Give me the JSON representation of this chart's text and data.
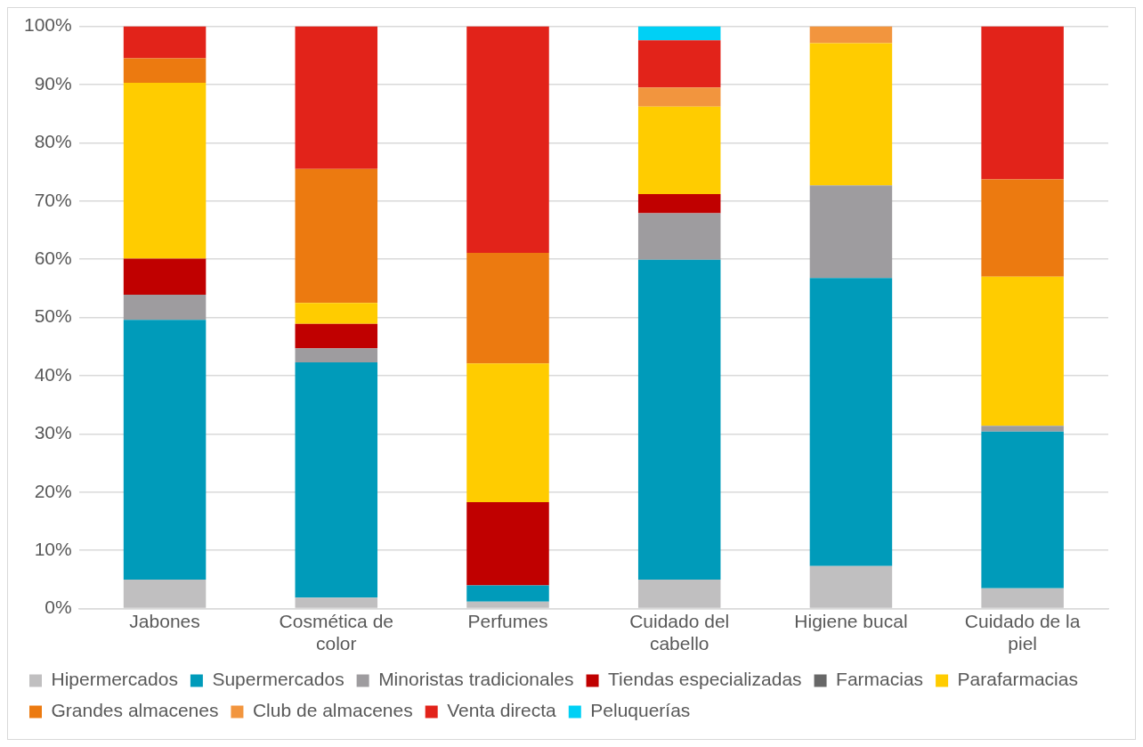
{
  "chart_data": {
    "type": "bar",
    "stacked": true,
    "categories": [
      "Jabones",
      "Cosmética de color",
      "Perfumes",
      "Cuidado del cabello",
      "Higiene bucal",
      "Cuidado de la piel"
    ],
    "series": [
      {
        "name": "Hipermercados",
        "color": "#c0bfc0",
        "values": [
          5.0,
          1.9,
          1.2,
          5.0,
          7.3,
          3.5
        ]
      },
      {
        "name": "Supermercados",
        "color": "#009bba",
        "values": [
          44.6,
          40.4,
          2.8,
          54.9,
          49.5,
          26.9
        ]
      },
      {
        "name": "Minoristas tradicionales",
        "color": "#9e9c9f",
        "values": [
          4.3,
          2.4,
          0,
          8.0,
          15.9,
          1.0
        ]
      },
      {
        "name": "Tiendas especializadas",
        "color": "#c00000",
        "values": [
          6.2,
          4.2,
          14.3,
          3.3,
          0,
          0
        ]
      },
      {
        "name": "Farmacias",
        "color": "#676767",
        "values": [
          0,
          0,
          0,
          0,
          0,
          0
        ]
      },
      {
        "name": "Parafarmacias",
        "color": "#ffcc00",
        "values": [
          30.2,
          3.6,
          23.8,
          15.0,
          24.4,
          25.6
        ]
      },
      {
        "name": "Grandes almacenes",
        "color": "#ec7a10",
        "values": [
          4.2,
          23.0,
          19.0,
          0,
          0,
          16.7
        ]
      },
      {
        "name": "Club de almacenes",
        "color": "#f2953e",
        "values": [
          0,
          0,
          0,
          3.3,
          2.9,
          0
        ]
      },
      {
        "name": "Venta directa",
        "color": "#e2231a",
        "values": [
          5.5,
          24.5,
          38.9,
          8.1,
          0,
          26.3
        ]
      },
      {
        "name": "Peluquerías",
        "color": "#00d0f5",
        "values": [
          0,
          0,
          0,
          2.4,
          0,
          0
        ]
      }
    ],
    "ylim": [
      0,
      100
    ],
    "yticks": [
      {
        "value": 0,
        "label": "0%"
      },
      {
        "value": 10,
        "label": "10%"
      },
      {
        "value": 20,
        "label": "20%"
      },
      {
        "value": 30,
        "label": "30%"
      },
      {
        "value": 40,
        "label": "40%"
      },
      {
        "value": 50,
        "label": "50%"
      },
      {
        "value": 60,
        "label": "60%"
      },
      {
        "value": 70,
        "label": "70%"
      },
      {
        "value": 80,
        "label": "80%"
      },
      {
        "value": 90,
        "label": "90%"
      },
      {
        "value": 100,
        "label": "100%"
      }
    ],
    "grid": "y",
    "legend": "bottom"
  }
}
